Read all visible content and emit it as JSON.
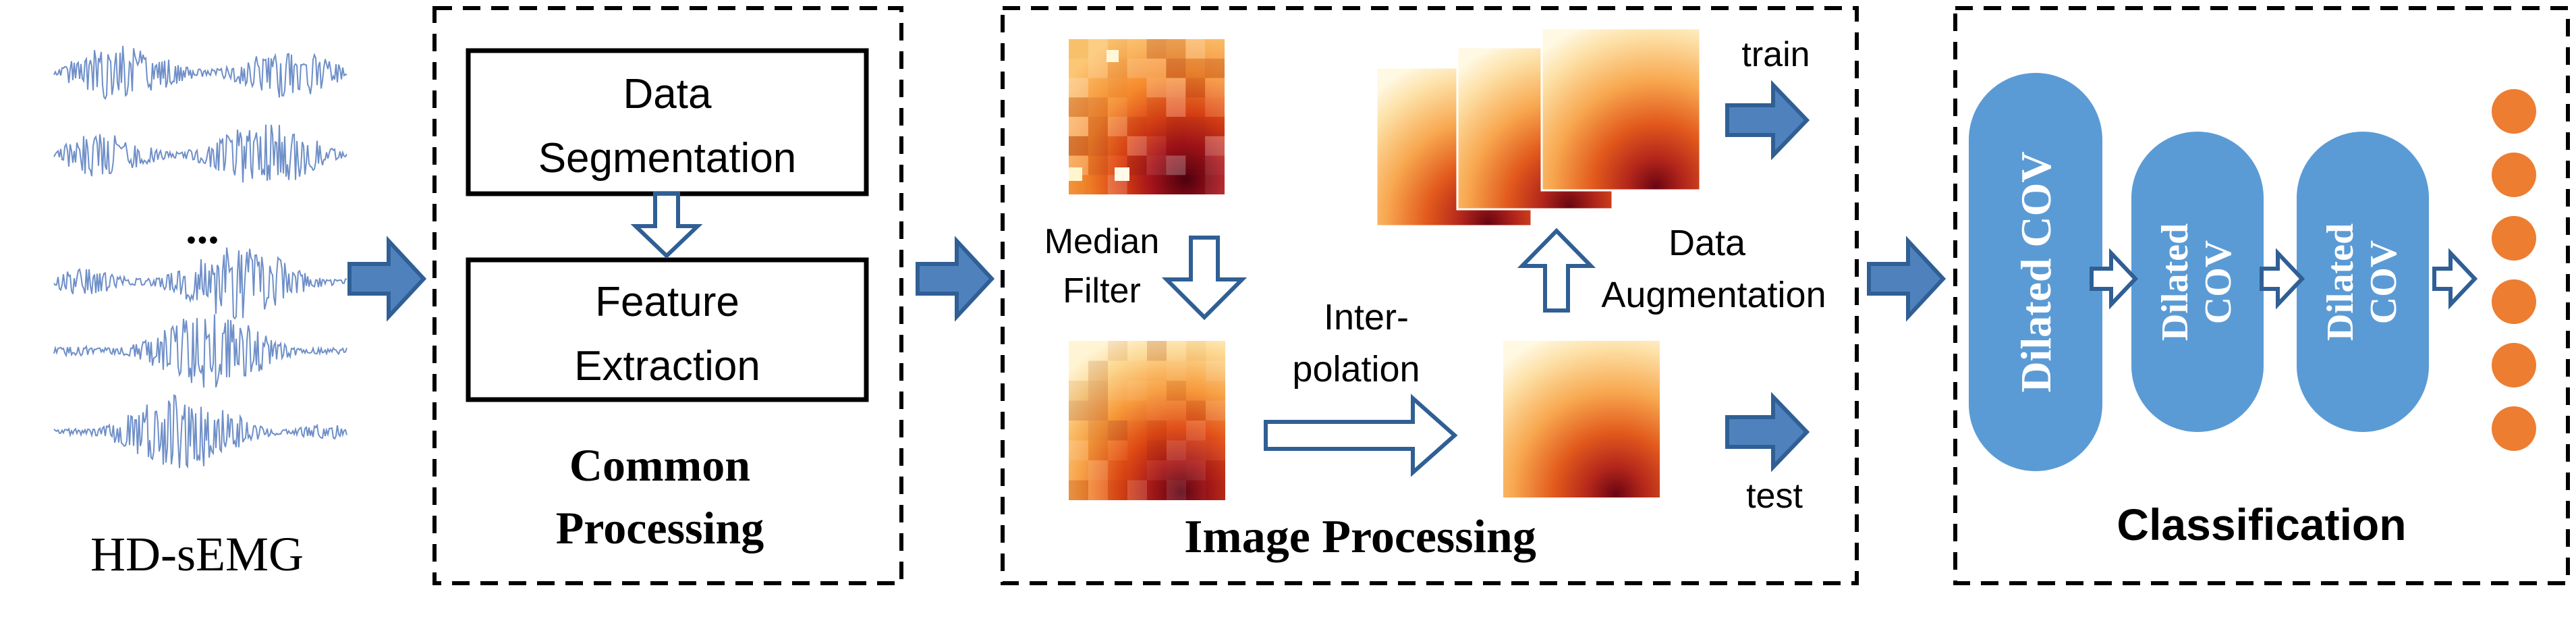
{
  "input": {
    "label": "HD-sEMG",
    "ellipsis": "..."
  },
  "common": {
    "title_line1": "Common",
    "title_line2": "Processing",
    "step1_line1": "Data",
    "step1_line2": "Segmentation",
    "step2_line1": "Feature",
    "step2_line2": "Extraction"
  },
  "image": {
    "title": "Image Processing",
    "median_line1": "Median",
    "median_line2": "Filter",
    "interp_line1": "Inter-",
    "interp_line2": "polation",
    "aug_line1": "Data",
    "aug_line2": "Augmentation",
    "train": "train",
    "test": "test"
  },
  "classification": {
    "title": "Classification",
    "block1_line1": "Dilated COV",
    "block2_line1": "Dilated",
    "block2_line2": "COV",
    "block3_line1": "Dilated",
    "block3_line2": "COV",
    "output_count": 6
  },
  "colors": {
    "arrow_fill": "#4f81bd",
    "arrow_stroke": "#2f5f94",
    "block_fill": "#5b9bd5",
    "output_dot": "#ed7d31",
    "signal": "#6e8fc8",
    "text": "#000000"
  }
}
